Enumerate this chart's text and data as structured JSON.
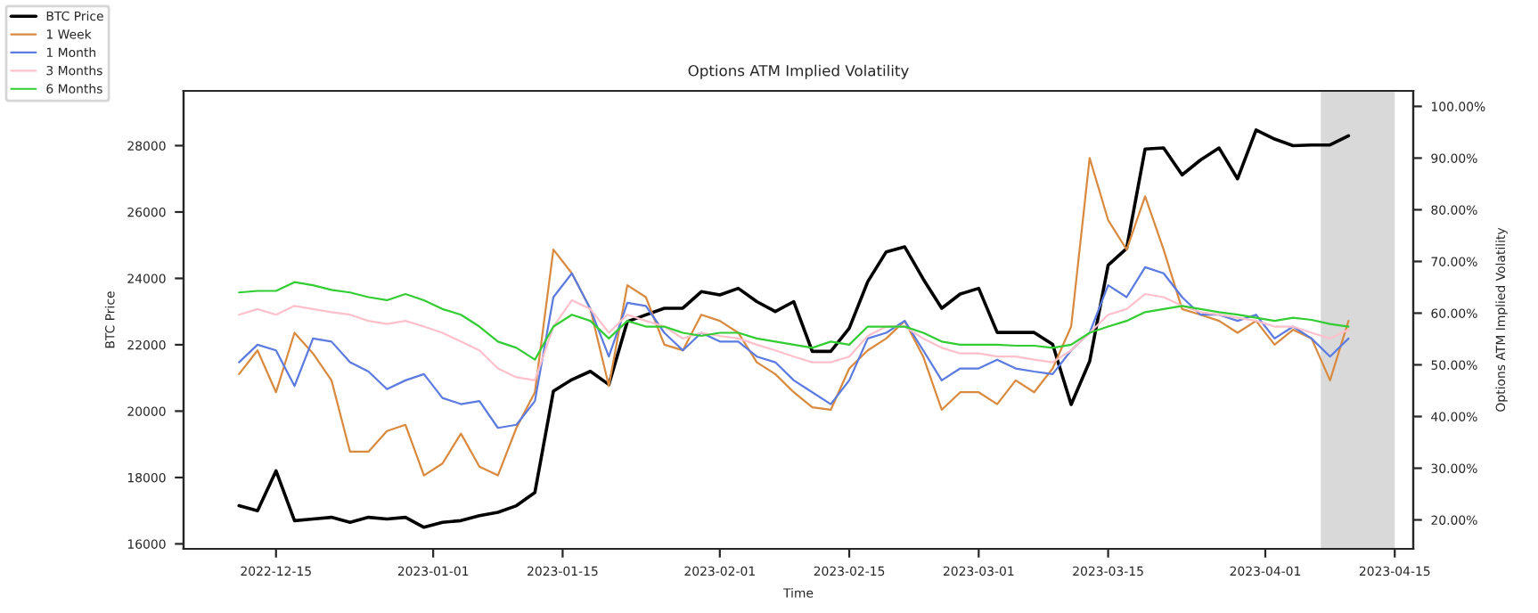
{
  "chart_data": {
    "type": "line",
    "title": "Options ATM Implied Volatility",
    "xlabel": "Time",
    "ylabel": "BTC Price",
    "y2label": "Options ATM Implied Volatility",
    "x": [
      "2022-12-11",
      "2022-12-13",
      "2022-12-15",
      "2022-12-17",
      "2022-12-19",
      "2022-12-21",
      "2022-12-23",
      "2022-12-25",
      "2022-12-27",
      "2022-12-29",
      "2022-12-31",
      "2023-01-02",
      "2023-01-04",
      "2023-01-06",
      "2023-01-08",
      "2023-01-10",
      "2023-01-12",
      "2023-01-14",
      "2023-01-16",
      "2023-01-18",
      "2023-01-20",
      "2023-01-22",
      "2023-01-24",
      "2023-01-26",
      "2023-01-28",
      "2023-01-30",
      "2023-02-01",
      "2023-02-03",
      "2023-02-05",
      "2023-02-07",
      "2023-02-09",
      "2023-02-11",
      "2023-02-13",
      "2023-02-15",
      "2023-02-17",
      "2023-02-19",
      "2023-02-21",
      "2023-02-23",
      "2023-02-25",
      "2023-02-27",
      "2023-03-01",
      "2023-03-03",
      "2023-03-05",
      "2023-03-07",
      "2023-03-09",
      "2023-03-11",
      "2023-03-13",
      "2023-03-15",
      "2023-03-17",
      "2023-03-19",
      "2023-03-21",
      "2023-03-23",
      "2023-03-25",
      "2023-03-27",
      "2023-03-29",
      "2023-03-31",
      "2023-04-02",
      "2023-04-04",
      "2023-04-06",
      "2023-04-08",
      "2023-04-10"
    ],
    "series": [
      {
        "name": "BTC Price",
        "color": "#000000",
        "axis": "y",
        "values": [
          17150,
          17000,
          18200,
          16700,
          16750,
          16800,
          16650,
          16800,
          16750,
          16800,
          16500,
          16650,
          16700,
          16850,
          16950,
          17150,
          17550,
          20600,
          20950,
          21200,
          20800,
          22700,
          22900,
          23100,
          23100,
          23600,
          23500,
          23700,
          23300,
          23000,
          23300,
          21800,
          21800,
          22500,
          23900,
          24800,
          24950,
          23980,
          23100,
          23530,
          23700,
          22370,
          22370,
          22370,
          22010,
          20200,
          21500,
          24400,
          24900,
          27900,
          27930,
          27120,
          27570,
          27930,
          27000,
          28470,
          28200,
          28000,
          28020,
          28020,
          28300
        ]
      },
      {
        "name": "1 Week",
        "color": "#d98a3e",
        "axis": "y2",
        "values": [
          48.2,
          52.8,
          44.7,
          56.2,
          52.2,
          47,
          33.2,
          33.2,
          37.2,
          38.4,
          28.6,
          30.9,
          36.7,
          30.3,
          28.6,
          37.8,
          44.7,
          72.3,
          67.7,
          60.8,
          45.9,
          65.4,
          63.1,
          53.9,
          52.8,
          59.7,
          58.5,
          56.2,
          50.5,
          48.2,
          44.7,
          41.8,
          41.3,
          49.3,
          52.8,
          55.1,
          58.5,
          51.6,
          41.3,
          44.7,
          44.7,
          42.4,
          47,
          44.7,
          49.3,
          57.4,
          90,
          78,
          72.3,
          82.6,
          72.3,
          60.8,
          59.7,
          58.5,
          56.2,
          58.5,
          53.9,
          56.8,
          55.1,
          47,
          58.5
        ]
      },
      {
        "name": "1 Month",
        "color": "#5b7be0",
        "axis": "y2",
        "values": [
          50.5,
          53.9,
          52.8,
          45.9,
          55.1,
          54.5,
          50.5,
          48.7,
          45.3,
          47,
          48.2,
          43.6,
          42.4,
          43,
          37.8,
          38.4,
          43,
          63.1,
          67.7,
          60.8,
          51.6,
          62,
          61.4,
          56.2,
          52.8,
          56.2,
          54.5,
          54.5,
          51.6,
          50.5,
          47,
          44.7,
          42.4,
          47,
          55.1,
          56.2,
          58.5,
          52.8,
          47,
          49.3,
          49.3,
          51,
          49.3,
          48.7,
          48.2,
          52.8,
          56.2,
          65.4,
          63.1,
          68.9,
          67.7,
          63.1,
          59.7,
          59.7,
          58.5,
          59.7,
          55.1,
          57.4,
          55.1,
          51.6,
          55.1
        ]
      },
      {
        "name": "3 Months",
        "color": "#ffc0cb",
        "axis": "y2",
        "values": [
          59.7,
          60.8,
          59.7,
          61.4,
          60.8,
          60.2,
          59.7,
          58.5,
          57.9,
          58.5,
          57.4,
          56.2,
          54.5,
          52.8,
          49.3,
          47.6,
          47,
          57.4,
          62.5,
          60.8,
          56.2,
          59.7,
          58.5,
          57.4,
          55.1,
          56.2,
          55.6,
          55.1,
          53.9,
          52.8,
          51.6,
          50.5,
          50.5,
          51.6,
          55.6,
          57.4,
          57.4,
          55.1,
          53.3,
          52.2,
          52.2,
          51.6,
          51.6,
          51,
          50.5,
          52.8,
          56.2,
          59.7,
          60.8,
          63.7,
          63.1,
          61.4,
          60.2,
          59.7,
          59.1,
          58.5,
          57.4,
          57.4,
          56.2,
          55.1,
          56.8
        ]
      },
      {
        "name": "6 Months",
        "color": "#32cd32",
        "axis": "y2",
        "values": [
          64,
          64.3,
          64.3,
          66,
          65.4,
          64.5,
          64,
          63.1,
          62.5,
          63.7,
          62.5,
          60.8,
          59.7,
          57.4,
          54.5,
          53.3,
          51,
          57.4,
          59.7,
          58.5,
          55.1,
          58.5,
          57.4,
          57.4,
          56.2,
          55.6,
          56.2,
          56.2,
          55.1,
          54.5,
          53.9,
          53.3,
          54.5,
          53.9,
          57.4,
          57.4,
          57.4,
          56.2,
          54.5,
          53.9,
          53.9,
          53.9,
          53.7,
          53.7,
          53.3,
          53.9,
          56.2,
          57.4,
          58.5,
          60.2,
          60.8,
          61.4,
          60.8,
          60.2,
          59.7,
          59.1,
          58.5,
          59.1,
          58.7,
          57.9,
          57.4
        ]
      }
    ],
    "xlim": [
      "2022-12-05",
      "2023-04-17"
    ],
    "xticks": [
      "2022-12-15",
      "2023-01-01",
      "2023-01-15",
      "2023-02-01",
      "2023-02-15",
      "2023-03-01",
      "2023-03-15",
      "2023-04-01",
      "2023-04-15"
    ],
    "ylim": [
      15850,
      29650
    ],
    "yticks": [
      16000,
      18000,
      20000,
      22000,
      24000,
      26000,
      28000
    ],
    "y2lim": [
      14.4,
      103
    ],
    "y2ticks": [
      {
        "value": 20,
        "label": "20.00%"
      },
      {
        "value": 30,
        "label": "30.00%"
      },
      {
        "value": 40,
        "label": "40.00%"
      },
      {
        "value": 50,
        "label": "50.00%"
      },
      {
        "value": 60,
        "label": "60.00%"
      },
      {
        "value": 70,
        "label": "70.00%"
      },
      {
        "value": 80,
        "label": "80.00%"
      },
      {
        "value": 90,
        "label": "90.00%"
      },
      {
        "value": 100,
        "label": "100.00%"
      }
    ],
    "bands": [
      {
        "axis": "x",
        "from": "2023-04-07",
        "to": "2023-04-15",
        "color": "#d9d9d9"
      }
    ],
    "grid": false,
    "legend": "top left",
    "marker": "none",
    "line_style": "solid"
  }
}
